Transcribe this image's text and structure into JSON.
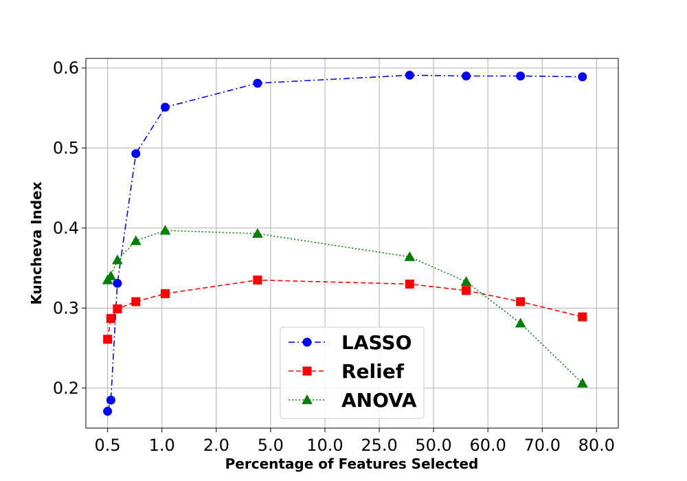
{
  "chart_data": {
    "type": "line",
    "title": "",
    "xlabel": "Percentage of Features Selected",
    "ylabel": "Kuncheva Index",
    "ylim": [
      0.15,
      0.612
    ],
    "xlim": [
      -0.4,
      9.4
    ],
    "grid": true,
    "legend_position": "lower-center",
    "x_ticks": [
      {
        "pos": 0,
        "label": "0.5"
      },
      {
        "pos": 1,
        "label": "1.0"
      },
      {
        "pos": 2,
        "label": "2.0"
      },
      {
        "pos": 3,
        "label": "5.0"
      },
      {
        "pos": 4,
        "label": "10.0"
      },
      {
        "pos": 5,
        "label": "25.0"
      },
      {
        "pos": 6,
        "label": "50.0"
      },
      {
        "pos": 7,
        "label": "60.0"
      },
      {
        "pos": 8,
        "label": "70.0"
      },
      {
        "pos": 9,
        "label": "80.0"
      }
    ],
    "y_ticks": [
      0.2,
      0.3,
      0.4,
      0.5,
      0.6
    ],
    "y_tick_labels": [
      "0.2",
      "0.3",
      "0.4",
      "0.5",
      "0.6"
    ],
    "series": [
      {
        "name": "LASSO",
        "color": "#0000ff",
        "marker": "circle",
        "linestyle": "dashdot",
        "x": [
          0.0,
          0.06,
          0.18,
          0.52,
          1.06,
          2.76,
          5.56,
          6.6,
          7.6,
          8.74
        ],
        "values": [
          0.171,
          0.185,
          0.331,
          0.493,
          0.551,
          0.581,
          0.591,
          0.59,
          0.59,
          0.589
        ]
      },
      {
        "name": "Relief",
        "color": "#ff0000",
        "marker": "square",
        "linestyle": "dashed",
        "x": [
          0.0,
          0.06,
          0.18,
          0.52,
          1.06,
          2.76,
          5.56,
          6.6,
          7.6,
          8.74
        ],
        "values": [
          0.261,
          0.287,
          0.299,
          0.308,
          0.318,
          0.335,
          0.33,
          0.322,
          0.308,
          0.289
        ]
      },
      {
        "name": "ANOVA",
        "color": "#008000",
        "marker": "triangle",
        "linestyle": "dotted",
        "x": [
          0.0,
          0.06,
          0.18,
          0.52,
          1.06,
          2.76,
          5.56,
          6.6,
          7.6,
          8.74
        ],
        "values": [
          0.335,
          0.34,
          0.36,
          0.384,
          0.397,
          0.393,
          0.364,
          0.333,
          0.281,
          0.206
        ]
      }
    ]
  }
}
